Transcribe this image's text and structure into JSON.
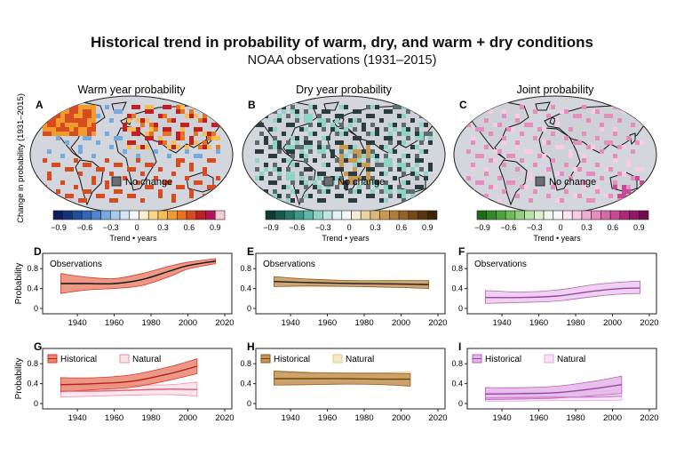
{
  "title": "Historical trend in probability of warm, dry, and warm + dry conditions",
  "subtitle": "NOAA observations (1931–2015)",
  "map_ylabel": "Change in probability (1931–2015)",
  "maps": [
    {
      "letter": "A",
      "title": "Warm year probability",
      "no_change": "No change",
      "colorbar_label": "Trend • years",
      "colorbar": {
        "ticks": [
          "−0.9",
          "−0.6",
          "−0.3",
          "0",
          "0.3",
          "0.6",
          "0.9"
        ],
        "colors": [
          "#0b1d5c",
          "#15337f",
          "#1f4e9c",
          "#3366b8",
          "#4d85cc",
          "#76a9de",
          "#a6cbec",
          "#d3e6f5",
          "#f7fbff",
          "#fdefc7",
          "#f9d78a",
          "#f5be55",
          "#f09a2f",
          "#e6741f",
          "#d74b1e",
          "#c21f24",
          "#b4125f",
          "#f6cdd5"
        ]
      }
    },
    {
      "letter": "B",
      "title": "Dry year probability",
      "no_change": "No change",
      "colorbar_label": "Trend • years",
      "colorbar": {
        "ticks": [
          "−0.9",
          "−0.6",
          "−0.3",
          "0",
          "0.3",
          "0.6",
          "0.9"
        ],
        "colors": [
          "#0c3b33",
          "#16574c",
          "#24766a",
          "#3a978a",
          "#5fb7ab",
          "#8fd2c8",
          "#bfe6e0",
          "#e3f3f1",
          "#f7f7f7",
          "#f6ecd2",
          "#ead4a3",
          "#dcb874",
          "#c99a4f",
          "#b17c33",
          "#946024",
          "#764818",
          "#5a330f",
          "#3f2208"
        ]
      }
    },
    {
      "letter": "C",
      "title": "Joint probability",
      "no_change": "No change",
      "colorbar_label": "Trend • years",
      "colorbar": {
        "ticks": [
          "−0.9",
          "−0.6",
          "−0.3",
          "0",
          "0.3",
          "0.6",
          "0.9"
        ],
        "colors": [
          "#1f6b1a",
          "#2f8a27",
          "#49a43a",
          "#6bbb57",
          "#93d07d",
          "#b9e2a7",
          "#dcf0d2",
          "#eff8ea",
          "#f7f7f7",
          "#fbe6f1",
          "#f6cde4",
          "#efaed3",
          "#e68cbf",
          "#d96aa9",
          "#c84892",
          "#b0287a",
          "#941763",
          "#730c4c"
        ]
      }
    }
  ],
  "panels": [
    {
      "letter": "D",
      "ylabel": "Probability",
      "legend": {
        "type": "text",
        "text": "Observations"
      }
    },
    {
      "letter": "E",
      "ylabel": "",
      "legend": {
        "type": "text",
        "text": "Observations"
      }
    },
    {
      "letter": "F",
      "ylabel": "",
      "legend": {
        "type": "text",
        "text": "Observations"
      }
    },
    {
      "letter": "G",
      "ylabel": "Probability",
      "legend": {
        "type": "boxes",
        "items": [
          "Historical",
          "Natural"
        ]
      }
    },
    {
      "letter": "H",
      "ylabel": "",
      "legend": {
        "type": "boxes",
        "items": [
          "Historical",
          "Natural"
        ]
      }
    },
    {
      "letter": "I",
      "ylabel": "",
      "legend": {
        "type": "boxes",
        "items": [
          "Historical",
          "Natural"
        ]
      }
    }
  ],
  "chart_data": [
    {
      "panel": "D",
      "type": "area",
      "x": [
        1931,
        1945,
        1960,
        1975,
        1990,
        2000,
        2015
      ],
      "xlim": [
        1925,
        2020
      ],
      "ylim": [
        0,
        1
      ],
      "xticks": [
        1940,
        1960,
        1980,
        2000,
        2020
      ],
      "yticks": [
        0,
        0.4,
        0.8
      ],
      "series": [
        {
          "name": "Observations",
          "color": "#d6382b",
          "fill": "#e98670",
          "line": "#111111",
          "values": [
            0.5,
            0.5,
            0.5,
            0.58,
            0.75,
            0.86,
            0.95
          ],
          "lower": [
            0.3,
            0.37,
            0.4,
            0.46,
            0.64,
            0.79,
            0.9
          ],
          "upper": [
            0.7,
            0.63,
            0.6,
            0.7,
            0.85,
            0.93,
            1.0
          ]
        }
      ]
    },
    {
      "panel": "E",
      "type": "area",
      "x": [
        1931,
        1950,
        1975,
        2000,
        2015
      ],
      "xlim": [
        1925,
        2020
      ],
      "ylim": [
        0,
        1
      ],
      "xticks": [
        1940,
        1960,
        1980,
        2000,
        2020
      ],
      "yticks": [
        0,
        0.4,
        0.8
      ],
      "series": [
        {
          "name": "Observations",
          "color": "#8c5a1c",
          "fill": "#c5955a",
          "line": "#222222",
          "values": [
            0.54,
            0.52,
            0.5,
            0.49,
            0.48
          ],
          "lower": [
            0.44,
            0.45,
            0.44,
            0.42,
            0.4
          ],
          "upper": [
            0.64,
            0.59,
            0.56,
            0.56,
            0.56
          ]
        }
      ]
    },
    {
      "panel": "F",
      "type": "area",
      "x": [
        1931,
        1950,
        1970,
        1990,
        2005,
        2015
      ],
      "xlim": [
        1925,
        2020
      ],
      "ylim": [
        0,
        1
      ],
      "xticks": [
        1940,
        1960,
        1980,
        2000,
        2020
      ],
      "yticks": [
        0,
        0.4,
        0.8
      ],
      "series": [
        {
          "name": "Observations",
          "color": "#b362b8",
          "fill": "#ebc8ee",
          "line": "#9b45a3",
          "values": [
            0.22,
            0.22,
            0.25,
            0.35,
            0.4,
            0.41
          ],
          "lower": [
            0.1,
            0.12,
            0.15,
            0.24,
            0.29,
            0.3
          ],
          "upper": [
            0.36,
            0.33,
            0.37,
            0.48,
            0.53,
            0.55
          ]
        }
      ]
    },
    {
      "panel": "G",
      "type": "area",
      "x": [
        1931,
        1950,
        1970,
        1990,
        2005
      ],
      "xlim": [
        1925,
        2020
      ],
      "ylim": [
        0,
        1
      ],
      "xticks": [
        1940,
        1960,
        1980,
        2000,
        2020
      ],
      "yticks": [
        0,
        0.4,
        0.8
      ],
      "series": [
        {
          "name": "Historical",
          "color": "#d6382b",
          "fill": "#e98670",
          "line": "#b1201d",
          "values": [
            0.38,
            0.4,
            0.45,
            0.6,
            0.75
          ],
          "lower": [
            0.24,
            0.28,
            0.33,
            0.47,
            0.6
          ],
          "upper": [
            0.52,
            0.52,
            0.58,
            0.74,
            0.9
          ]
        },
        {
          "name": "Natural",
          "color": "#ec8fa4",
          "fill": "#fbe2e7",
          "line": "#e0637c",
          "values": [
            0.25,
            0.25,
            0.27,
            0.29,
            0.28
          ],
          "lower": [
            0.13,
            0.15,
            0.17,
            0.18,
            0.15
          ],
          "upper": [
            0.38,
            0.36,
            0.37,
            0.38,
            0.43
          ]
        }
      ]
    },
    {
      "panel": "H",
      "type": "area",
      "x": [
        1931,
        1950,
        1970,
        1990,
        2005
      ],
      "xlim": [
        1925,
        2020
      ],
      "ylim": [
        0,
        1
      ],
      "xticks": [
        1940,
        1960,
        1980,
        2000,
        2020
      ],
      "yticks": [
        0,
        0.4,
        0.8
      ],
      "series": [
        {
          "name": "Historical",
          "color": "#8c5a1c",
          "fill": "#c5955a",
          "line": "#6e4310",
          "values": [
            0.5,
            0.5,
            0.5,
            0.49,
            0.49
          ],
          "lower": [
            0.37,
            0.38,
            0.39,
            0.38,
            0.35
          ],
          "upper": [
            0.65,
            0.62,
            0.61,
            0.61,
            0.6
          ]
        },
        {
          "name": "Natural",
          "color": "#e2c98a",
          "fill": "#f4e8c6",
          "line": "#c9a75a",
          "values": [
            0.52,
            0.52,
            0.52,
            0.52,
            0.52
          ],
          "lower": [
            0.4,
            0.41,
            0.42,
            0.41,
            0.39
          ],
          "upper": [
            0.66,
            0.63,
            0.62,
            0.62,
            0.64
          ]
        }
      ]
    },
    {
      "panel": "I",
      "type": "area",
      "x": [
        1931,
        1950,
        1970,
        1990,
        2005
      ],
      "xlim": [
        1925,
        2020
      ],
      "ylim": [
        0,
        1
      ],
      "xticks": [
        1940,
        1960,
        1980,
        2000,
        2020
      ],
      "yticks": [
        0,
        0.4,
        0.8
      ],
      "series": [
        {
          "name": "Historical",
          "color": "#b362b8",
          "fill": "#e3b6e8",
          "line": "#9b45a3",
          "values": [
            0.19,
            0.2,
            0.22,
            0.3,
            0.38
          ],
          "lower": [
            0.08,
            0.09,
            0.11,
            0.16,
            0.2
          ],
          "upper": [
            0.32,
            0.32,
            0.35,
            0.45,
            0.55
          ]
        },
        {
          "name": "Natural",
          "color": "#e6a4e2",
          "fill": "#f8e3f6",
          "line": "#d47fd0",
          "values": [
            0.11,
            0.12,
            0.13,
            0.13,
            0.15
          ],
          "lower": [
            0.04,
            0.05,
            0.06,
            0.06,
            0.07
          ],
          "upper": [
            0.22,
            0.22,
            0.23,
            0.24,
            0.28
          ]
        }
      ]
    }
  ]
}
